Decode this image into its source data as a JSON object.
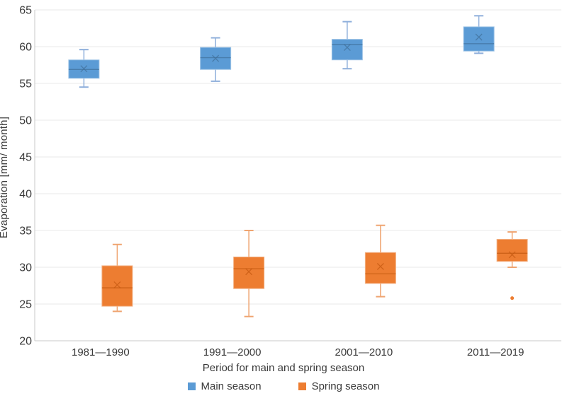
{
  "chart_data": {
    "type": "boxplot",
    "title": "",
    "xlabel": "Period for main and spring season",
    "ylabel": "Evaporation [mm/ month]",
    "ylim": [
      20,
      65
    ],
    "ytick_step": 5,
    "grid": "horizontal",
    "legend_position": "bottom",
    "colors": {
      "gridline": "#E8E8E8",
      "axis_line": "#C9C9C9",
      "tick_text": "#3a3a3a"
    },
    "categories": [
      "1981—1990",
      "1991—2000",
      "2001—2010",
      "2011—2019"
    ],
    "series": [
      {
        "name": "Main season",
        "color": "#5B9BD5",
        "border_color": "#9DC3E6",
        "whisker_color": "#8FAFDB",
        "line_color": "#41719C",
        "boxes": [
          {
            "low": 54.5,
            "q1": 55.7,
            "median": 56.9,
            "mean": 57.0,
            "q3": 58.2,
            "high": 59.6,
            "outliers": []
          },
          {
            "low": 55.3,
            "q1": 56.9,
            "median": 58.5,
            "mean": 58.4,
            "q3": 59.9,
            "high": 61.2,
            "outliers": []
          },
          {
            "low": 57.0,
            "q1": 58.2,
            "median": 60.3,
            "mean": 59.9,
            "q3": 61.0,
            "high": 63.4,
            "outliers": []
          },
          {
            "low": 59.1,
            "q1": 59.4,
            "median": 60.4,
            "mean": 61.3,
            "q3": 62.7,
            "high": 64.2,
            "outliers": []
          }
        ]
      },
      {
        "name": "Spring season",
        "color": "#ED7D31",
        "border_color": "#F2B083",
        "whisker_color": "#EFA470",
        "line_color": "#C55A11",
        "boxes": [
          {
            "low": 24.0,
            "q1": 24.7,
            "median": 27.2,
            "mean": 27.6,
            "q3": 30.2,
            "high": 33.1,
            "outliers": []
          },
          {
            "low": 23.3,
            "q1": 27.1,
            "median": 29.8,
            "mean": 29.4,
            "q3": 31.4,
            "high": 35.0,
            "outliers": []
          },
          {
            "low": 26.0,
            "q1": 27.8,
            "median": 29.1,
            "mean": 30.1,
            "q3": 32.0,
            "high": 35.7,
            "outliers": []
          },
          {
            "low": 30.0,
            "q1": 30.8,
            "median": 31.9,
            "mean": 31.7,
            "q3": 33.8,
            "high": 34.8,
            "outliers": [
              25.8
            ]
          }
        ]
      }
    ]
  }
}
